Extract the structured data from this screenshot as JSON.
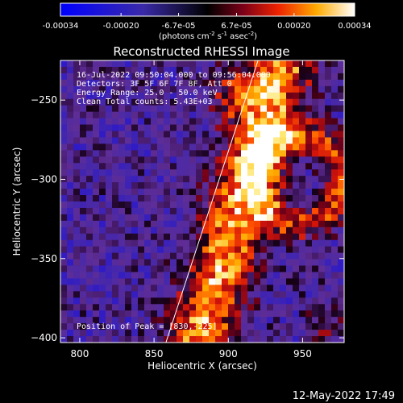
{
  "colorbar": {
    "tick_labels": [
      "-0.00034",
      "-0.00020",
      "-6.7e-05",
      "6.7e-05",
      "0.00020",
      "0.00034"
    ],
    "units": "(photons cm",
    "units_exp1": "-2",
    "units_mid": " s",
    "units_exp2": "-1",
    "units_end": " asec",
    "units_exp3": "-2",
    "units_close": ")"
  },
  "chart_data": {
    "type": "heatmap",
    "title": "Reconstructed RHESSI Image",
    "xlabel": "Heliocentric X (arcsec)",
    "ylabel": "Heliocentric Y (arcsec)",
    "xlim": [
      787,
      978
    ],
    "ylim": [
      -403,
      -225
    ],
    "x_ticks": [
      800,
      850,
      900,
      950
    ],
    "y_ticks": [
      -250,
      -300,
      -350,
      -400
    ],
    "x_tick_labels": [
      "800",
      "850",
      "900",
      "950"
    ],
    "y_tick_labels": [
      "−250",
      "−300",
      "−350",
      "−400"
    ],
    "value_range": [
      -0.00034,
      0.00034
    ],
    "peak": [
      830,
      -225
    ],
    "limb_line": [
      [
        858,
        -403
      ],
      [
        920,
        -225
      ]
    ],
    "annotations": [
      "16-Jul-2022 09:50:04.000 to 09:56:04.000",
      "Detectors: 3F 5F 6F 7F 8F, Att 0",
      "Energy Range: 25.0 - 50.0 keV",
      "Clean     Total counts: 5.43E+03",
      "Position of Peak = [830,-225]"
    ]
  },
  "footer": {
    "timestamp": "12-May-2022 17:49"
  }
}
